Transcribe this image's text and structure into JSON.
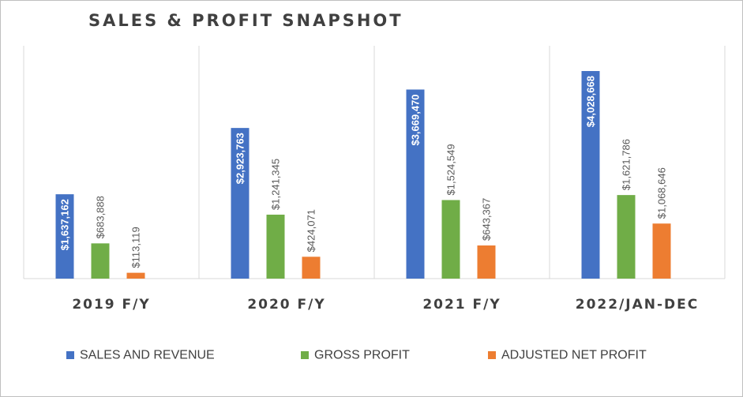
{
  "chart_data": {
    "type": "bar",
    "title": "SALES & PROFIT SNAPSHOT",
    "categories": [
      "2019 F/Y",
      "2020 F/Y",
      "2021 F/Y",
      "2022/JAN-DEC"
    ],
    "series": [
      {
        "name": "SALES AND REVENUE",
        "color": "#4472c4",
        "values": [
          1637162,
          2923763,
          3669470,
          4028668
        ],
        "labels": [
          "$1,637,162",
          "$2,923,763",
          "$3,669,470",
          "$4,028,668"
        ]
      },
      {
        "name": "GROSS PROFIT",
        "color": "#70ad47",
        "values": [
          683888,
          1241345,
          1524549,
          1621786
        ],
        "labels": [
          "$683,888",
          "$1,241,345",
          "$1,524,549",
          "$1,621,786"
        ]
      },
      {
        "name": "ADJUSTED NET PROFIT",
        "color": "#ed7d31",
        "values": [
          113119,
          424071,
          643367,
          1068646
        ],
        "labels": [
          "$113,119",
          "$424,071",
          "$643,367",
          "$1,068,646"
        ]
      }
    ],
    "ylim": [
      0,
      4500000
    ],
    "grid": false,
    "legend_position": "bottom"
  }
}
